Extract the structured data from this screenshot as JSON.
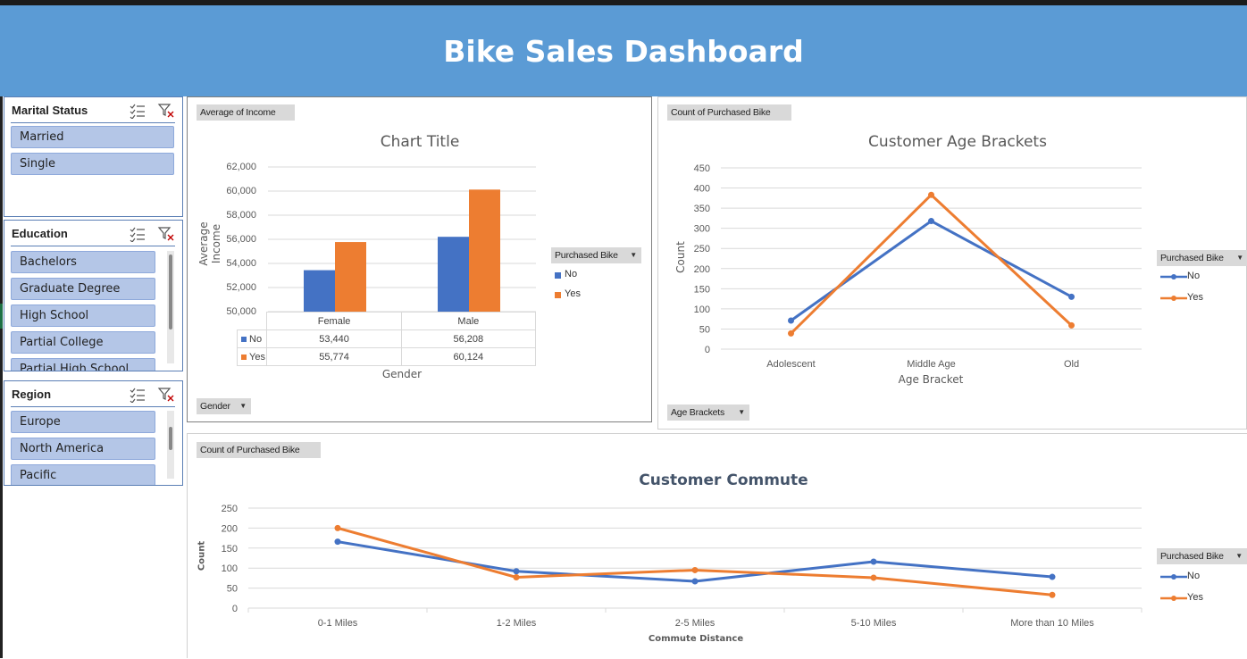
{
  "dashboard": {
    "title": "Bike Sales Dashboard"
  },
  "slicers": {
    "marital": {
      "title": "Marital Status",
      "items": [
        "Married",
        "Single"
      ]
    },
    "education": {
      "title": "Education",
      "items": [
        "Bachelors",
        "Graduate Degree",
        "High School",
        "Partial College",
        "Partial High School"
      ]
    },
    "region": {
      "title": "Region",
      "items": [
        "Europe",
        "North America",
        "Pacific"
      ]
    }
  },
  "income_chart": {
    "value_field": "Average of Income",
    "axis_field": "Gender",
    "legend_field": "Purchased Bike",
    "title": "Chart Title",
    "ylabel": "Average Income",
    "xlabel": "Gender",
    "yticks": [
      "62,000",
      "60,000",
      "58,000",
      "56,000",
      "54,000",
      "52,000",
      "50,000"
    ],
    "legend": [
      "No",
      "Yes"
    ],
    "table": {
      "headers": [
        "Female",
        "Male"
      ],
      "rows": [
        {
          "label": "No",
          "cells": [
            "53,440",
            "56,208"
          ]
        },
        {
          "label": "Yes",
          "cells": [
            "55,774",
            "60,124"
          ]
        }
      ]
    }
  },
  "age_chart": {
    "value_field": "Count of Purchased Bike",
    "axis_field": "Age Brackets",
    "legend_field": "Purchased Bike",
    "title": "Customer Age Brackets",
    "ylabel": "Count",
    "xlabel": "Age Bracket",
    "yticks": [
      "450",
      "400",
      "350",
      "300",
      "250",
      "200",
      "150",
      "100",
      "50",
      "0"
    ],
    "legend": [
      "No",
      "Yes"
    ]
  },
  "commute_chart": {
    "value_field": "Count of Purchased Bike",
    "legend_field": "Purchased Bike",
    "title": "Customer Commute",
    "ylabel": "Count",
    "xlabel": "Commute Distance",
    "yticks": [
      "250",
      "200",
      "150",
      "100",
      "50",
      "0"
    ],
    "legend": [
      "No",
      "Yes"
    ]
  },
  "colors": {
    "banner": "#5b9bd5",
    "no": "#4472c4",
    "yes": "#ed7d31",
    "slicer_item": "#b4c6e7"
  },
  "chart_data": [
    {
      "type": "bar",
      "title": "Chart Title",
      "xlabel": "Gender",
      "ylabel": "Average Income",
      "categories": [
        "Female",
        "Male"
      ],
      "series": [
        {
          "name": "No",
          "values": [
            53440,
            56208
          ]
        },
        {
          "name": "Yes",
          "values": [
            55774,
            60124
          ]
        }
      ],
      "ylim": [
        50000,
        62000
      ],
      "grid": true,
      "legend": "right"
    },
    {
      "type": "line",
      "title": "Customer Age Brackets",
      "xlabel": "Age Bracket",
      "ylabel": "Count",
      "categories": [
        "Adolescent",
        "Middle Age",
        "Old"
      ],
      "series": [
        {
          "name": "No",
          "values": [
            71,
            318,
            130
          ]
        },
        {
          "name": "Yes",
          "values": [
            39,
            383,
            59
          ]
        }
      ],
      "ylim": [
        0,
        450
      ],
      "grid": true,
      "legend": "right"
    },
    {
      "type": "line",
      "title": "Customer Commute",
      "xlabel": "Commute Distance",
      "ylabel": "Count",
      "categories": [
        "0-1 Miles",
        "1-2 Miles",
        "2-5 Miles",
        "5-10 Miles",
        "More than 10 Miles"
      ],
      "series": [
        {
          "name": "No",
          "values": [
            166,
            92,
            67,
            116,
            78
          ]
        },
        {
          "name": "Yes",
          "values": [
            200,
            77,
            95,
            76,
            33
          ]
        }
      ],
      "ylim": [
        0,
        250
      ],
      "grid": true,
      "legend": "right"
    }
  ]
}
